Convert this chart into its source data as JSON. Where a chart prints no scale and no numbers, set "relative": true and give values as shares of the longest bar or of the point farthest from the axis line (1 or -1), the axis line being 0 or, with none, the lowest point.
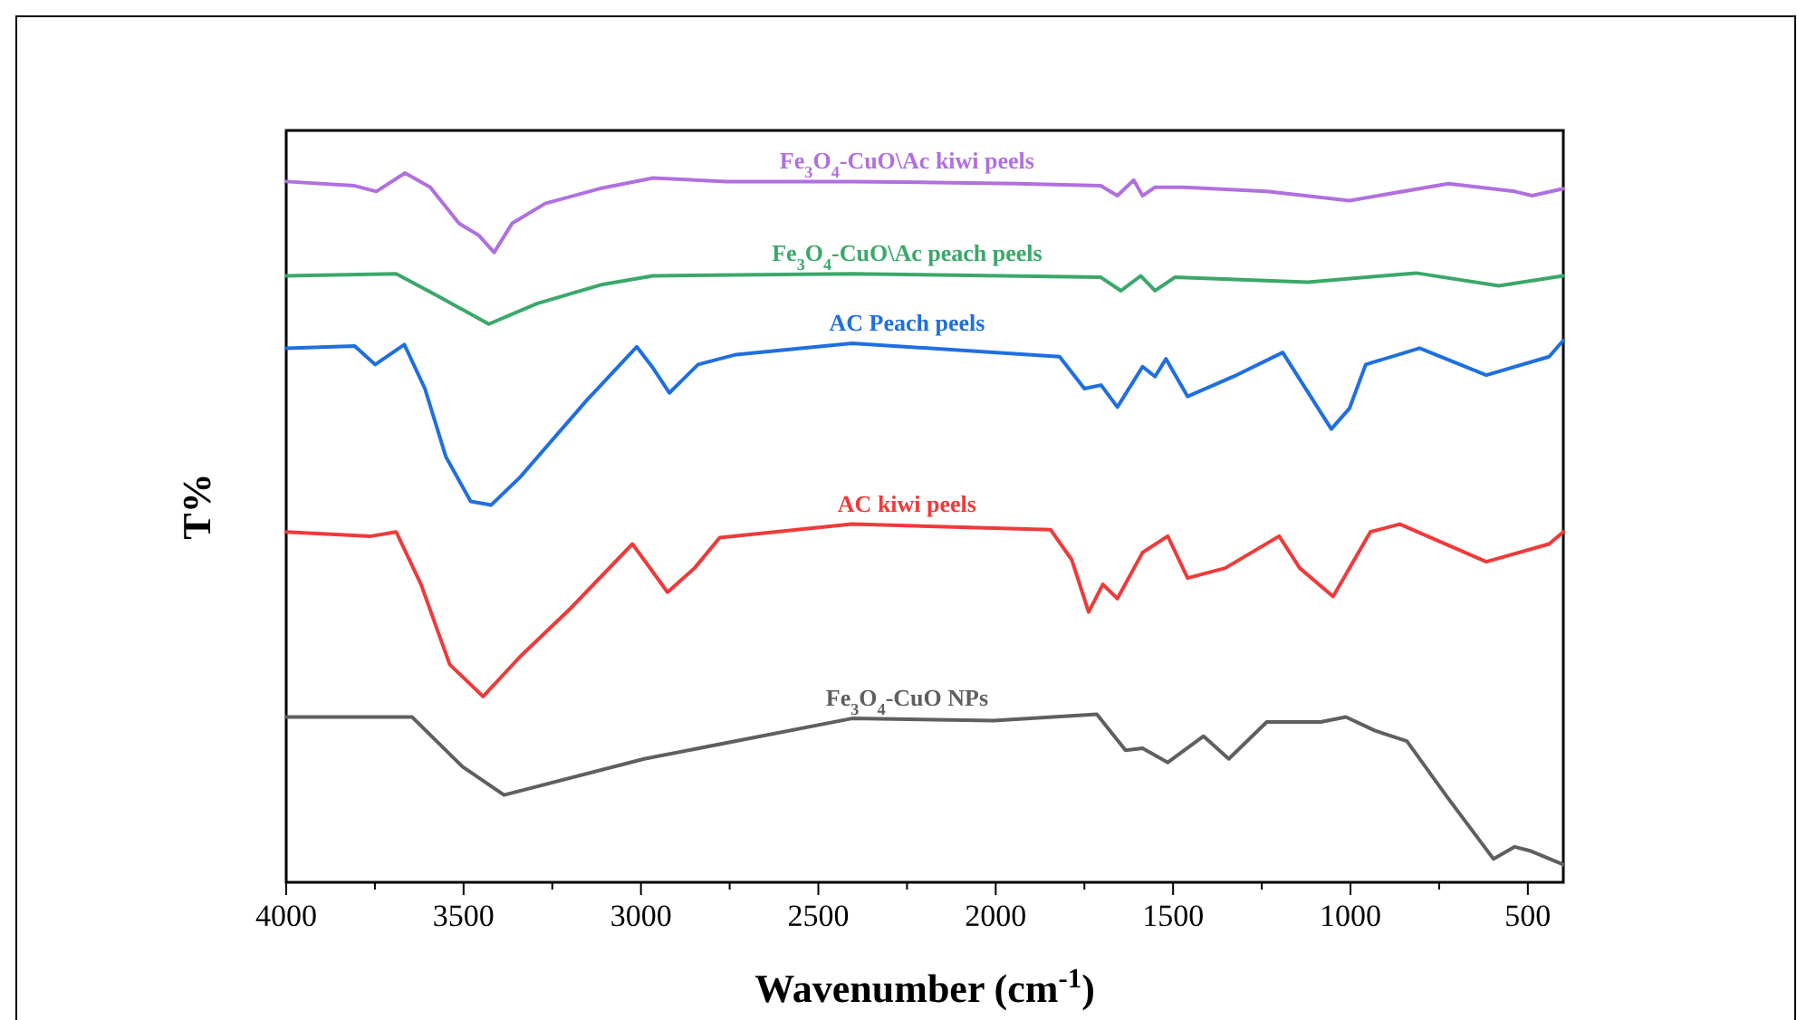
{
  "chart_data": {
    "type": "line",
    "relative": true,
    "xlabel": "Wavenumber (cm$^{-1}$)",
    "ylabel": "T%",
    "xlim": [
      4000,
      400
    ],
    "xticks": [
      4000,
      {
        "value": 3750,
        "label": null
      },
      3500,
      {
        "value": 3250,
        "label": null
      },
      3000,
      {
        "value": 2750,
        "label": null
      },
      2500,
      {
        "value": 2250,
        "label": null
      },
      2000,
      {
        "value": 1750,
        "label": null
      },
      1500,
      {
        "value": 1250,
        "label": null
      },
      1000,
      {
        "value": 750,
        "label": null
      },
      500
    ],
    "tick_labels": "x",
    "grid": false,
    "marker": "none",
    "line_style": "solid",
    "series": [
      {
        "name": "Fe$_{3}$O$_{4}$-CuO\\Ac kiwi peels",
        "color": "#b070e0",
        "x": [
          4000,
          3807,
          3746,
          3665,
          3594,
          3513,
          3457,
          3414,
          3363,
          3270,
          3108,
          2966,
          2758,
          2405,
          1938,
          1704,
          1657,
          1611,
          1586,
          1551,
          1469,
          1236,
          1003,
          724,
          537,
          488,
          400
        ],
        "values": [
          0.988,
          0.982,
          0.974,
          1.0,
          0.98,
          0.929,
          0.912,
          0.888,
          0.929,
          0.957,
          0.979,
          0.993,
          0.988,
          0.988,
          0.985,
          0.982,
          0.968,
          0.99,
          0.968,
          0.98,
          0.98,
          0.974,
          0.961,
          0.985,
          0.974,
          0.968,
          0.978
        ]
      },
      {
        "name": "Fe$_{3}$O$_{4}$-CuO\\Ac peach peels",
        "color": "#3aa86a",
        "x": [
          4000,
          3690,
          3574,
          3429,
          3293,
          3108,
          2966,
          2405,
          1704,
          1647,
          1591,
          1551,
          1495,
          1120,
          815,
          582,
          400
        ],
        "values": [
          0.855,
          0.858,
          0.827,
          0.787,
          0.816,
          0.843,
          0.855,
          0.858,
          0.853,
          0.834,
          0.855,
          0.834,
          0.853,
          0.846,
          0.859,
          0.841,
          0.855
        ]
      },
      {
        "name": "AC Peach peels",
        "color": "#1f6fe0",
        "x": [
          4000,
          3807,
          3749,
          3667,
          3609,
          3550,
          3480,
          3422,
          3341,
          3154,
          3012,
          2966,
          2920,
          2839,
          2732,
          2405,
          1820,
          1750,
          1703,
          1657,
          1586,
          1551,
          1520,
          1459,
          1330,
          1191,
          1054,
          1003,
          957,
          805,
          617,
          440,
          400
        ],
        "values": [
          0.753,
          0.756,
          0.73,
          0.758,
          0.696,
          0.6,
          0.537,
          0.532,
          0.571,
          0.679,
          0.755,
          0.725,
          0.69,
          0.73,
          0.744,
          0.76,
          0.741,
          0.696,
          0.701,
          0.67,
          0.727,
          0.713,
          0.738,
          0.685,
          0.713,
          0.747,
          0.639,
          0.668,
          0.73,
          0.753,
          0.715,
          0.741,
          0.764
        ]
      },
      {
        "name": "AC kiwi peels",
        "color": "#f03a3a",
        "x": [
          4000,
          3761,
          3690,
          3620,
          3539,
          3445,
          3341,
          3199,
          3024,
          2925,
          2849,
          2778,
          2405,
          1845,
          1786,
          1738,
          1698,
          1657,
          1586,
          1515,
          1459,
          1353,
          1201,
          1143,
          1049,
          944,
          861,
          617,
          440,
          400
        ],
        "values": [
          0.494,
          0.488,
          0.494,
          0.42,
          0.307,
          0.262,
          0.318,
          0.386,
          0.477,
          0.409,
          0.443,
          0.486,
          0.505,
          0.497,
          0.455,
          0.381,
          0.42,
          0.4,
          0.465,
          0.488,
          0.429,
          0.443,
          0.488,
          0.443,
          0.403,
          0.494,
          0.505,
          0.452,
          0.477,
          0.494
        ]
      },
      {
        "name": "Fe$_{3}$O$_{4}$-CuO NPs",
        "color": "#5f5f5f",
        "x": [
          4000,
          3645,
          3503,
          3386,
          2991,
          2405,
          2006,
          1715,
          1634,
          1586,
          1515,
          1414,
          1343,
          1236,
          1084,
          1013,
          932,
          841,
          724,
          597,
          537,
          491,
          400
        ],
        "values": [
          0.233,
          0.233,
          0.163,
          0.123,
          0.174,
          0.231,
          0.228,
          0.237,
          0.186,
          0.189,
          0.169,
          0.206,
          0.174,
          0.226,
          0.226,
          0.233,
          0.214,
          0.199,
          0.118,
          0.033,
          0.05,
          0.044,
          0.025
        ]
      }
    ]
  }
}
